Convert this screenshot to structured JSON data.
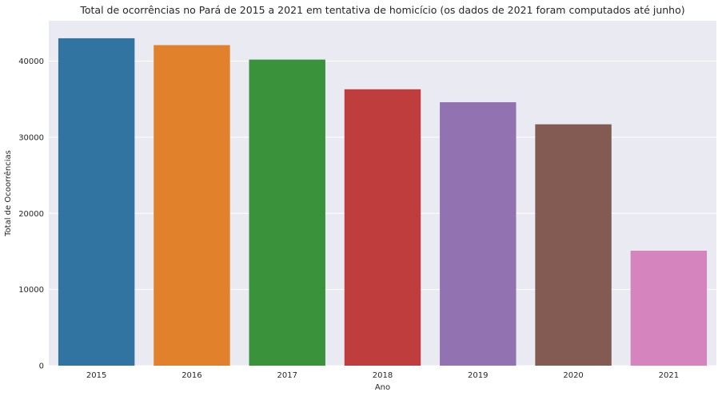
{
  "chart_data": {
    "type": "bar",
    "title": "Total de ocorrências no Pará de 2015 a 2021 em tentativa de homicício (os dados de 2021 foram computados até junho)",
    "xlabel": "Ano",
    "ylabel": "Total de Ocoorrências",
    "categories": [
      "2015",
      "2016",
      "2017",
      "2018",
      "2019",
      "2020",
      "2021"
    ],
    "values": [
      43000,
      42100,
      40200,
      36300,
      34600,
      31700,
      15100
    ],
    "ylim": [
      0,
      45300
    ],
    "yticks": [
      0,
      10000,
      20000,
      30000,
      40000
    ],
    "ytick_labels": [
      "0",
      "10000",
      "20000",
      "30000",
      "40000"
    ],
    "colors": [
      "#3274a1",
      "#e1812c",
      "#3a923a",
      "#c03d3e",
      "#9372b2",
      "#845b53",
      "#d684bd"
    ],
    "grid": true,
    "legend": "none",
    "background": "#eaeaf2"
  }
}
